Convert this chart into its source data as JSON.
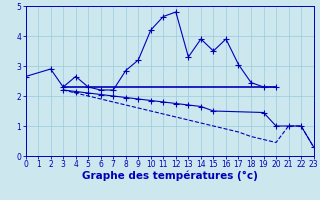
{
  "bg_color": "#cce8ee",
  "grid_color": "#99ccdd",
  "line_color": "#0000bb",
  "line1_x": [
    0,
    2,
    3,
    4,
    5,
    6,
    7,
    8,
    9,
    10,
    11,
    12,
    13,
    14,
    15,
    16,
    17,
    18,
    19,
    20
  ],
  "line1_y": [
    2.65,
    2.9,
    2.3,
    2.65,
    2.3,
    2.2,
    2.2,
    2.85,
    3.2,
    4.2,
    4.65,
    4.8,
    3.3,
    3.9,
    3.5,
    3.9,
    3.05,
    2.45,
    2.3,
    2.3
  ],
  "line2_x": [
    3,
    20
  ],
  "line2_y": [
    2.3,
    2.3
  ],
  "line3_x": [
    3,
    4,
    5,
    6,
    7,
    8,
    9,
    10,
    11,
    12,
    13,
    14,
    15,
    19,
    20,
    21,
    22,
    23
  ],
  "line3_y": [
    2.2,
    2.15,
    2.1,
    2.05,
    2.0,
    1.95,
    1.9,
    1.85,
    1.8,
    1.75,
    1.7,
    1.65,
    1.5,
    1.45,
    1.0,
    1.0,
    1.0,
    0.3
  ],
  "line4_x": [
    3,
    5,
    6,
    7,
    8,
    9,
    10,
    11,
    12,
    13,
    14,
    15,
    16,
    17,
    18,
    19,
    20,
    21,
    22,
    23
  ],
  "line4_y": [
    2.2,
    2.0,
    1.9,
    1.8,
    1.7,
    1.6,
    1.5,
    1.4,
    1.3,
    1.2,
    1.1,
    1.0,
    0.9,
    0.8,
    0.65,
    0.55,
    0.45,
    1.0,
    1.0,
    0.3
  ],
  "xlim": [
    0,
    23
  ],
  "ylim": [
    0,
    5
  ],
  "xticks": [
    0,
    1,
    2,
    3,
    4,
    5,
    6,
    7,
    8,
    9,
    10,
    11,
    12,
    13,
    14,
    15,
    16,
    17,
    18,
    19,
    20,
    21,
    22,
    23
  ],
  "yticks": [
    0,
    1,
    2,
    3,
    4,
    5
  ],
  "xlabel": "Graphe des températures (°c)",
  "xlabel_fontsize": 7.5,
  "tick_fontsize": 5.5
}
